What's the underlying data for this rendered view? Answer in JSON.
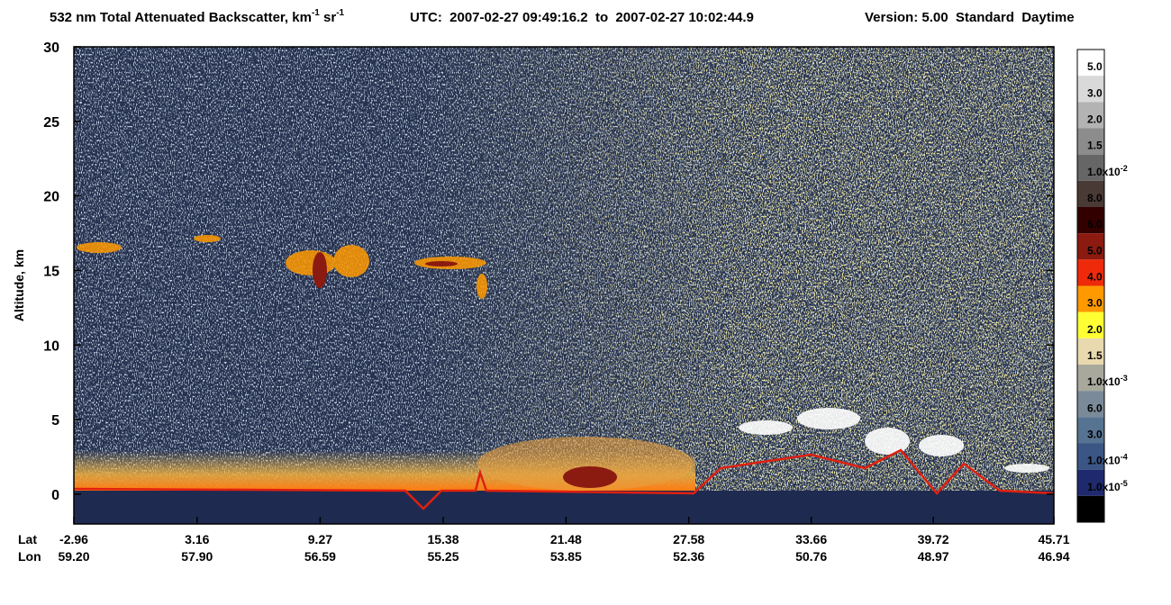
{
  "chart_data": {
    "type": "heatmap",
    "title": [
      "532 nm Total Attenuated Backscatter, km",
      "-1",
      " sr",
      "-1"
    ],
    "time_range": "UTC:  2007-02-27 09:49:16.2  to  2007-02-27 10:02:44.9",
    "version": "Version: 5.00  Standard  Daytime",
    "ylabel": "Altitude, km",
    "ylim": [
      -2,
      30
    ],
    "yticks": [
      0,
      5,
      10,
      15,
      20,
      25,
      30
    ],
    "xrow_labels": [
      "Lat",
      "Lon"
    ],
    "xlim": [
      -2.96,
      45.71
    ],
    "lat": [
      -2.96,
      3.16,
      9.27,
      15.38,
      21.48,
      27.58,
      33.66,
      39.72,
      45.71
    ],
    "lon": [
      {
        "value": 59.2,
        "label": "59.20"
      },
      {
        "value": 57.9,
        "label": "57.90"
      },
      56.59,
      55.25,
      53.85,
      52.36,
      50.76,
      48.97,
      46.94
    ],
    "colorbar": {
      "colors": [
        "#ffffff",
        "#d9d9d9",
        "#b3b3b3",
        "#8c8c8c",
        "#666666",
        "#4a3a36",
        "#330000",
        "#8b1a10",
        "#ee2a0a",
        "#ff9900",
        "#ffff33",
        "#e8d9ae",
        "#a8a89c",
        "#7a8a99",
        "#567391",
        "#3b5585",
        "#1f2a6e",
        "#000000"
      ],
      "labels": [
        "5.0",
        "3.0",
        "2.0",
        "1.5",
        {
          "base": "1.0x10",
          "exp": "-2"
        },
        "8.0",
        "6.0",
        "5.0",
        "4.0",
        "3.0",
        "2.0",
        "1.5",
        {
          "base": "1.0x10",
          "exp": "-3"
        },
        "6.0",
        "3.0",
        {
          "base": "1.0x10",
          "exp": "-4"
        },
        {
          "base": "1.0x10",
          "exp": "-5"
        }
      ]
    }
  }
}
